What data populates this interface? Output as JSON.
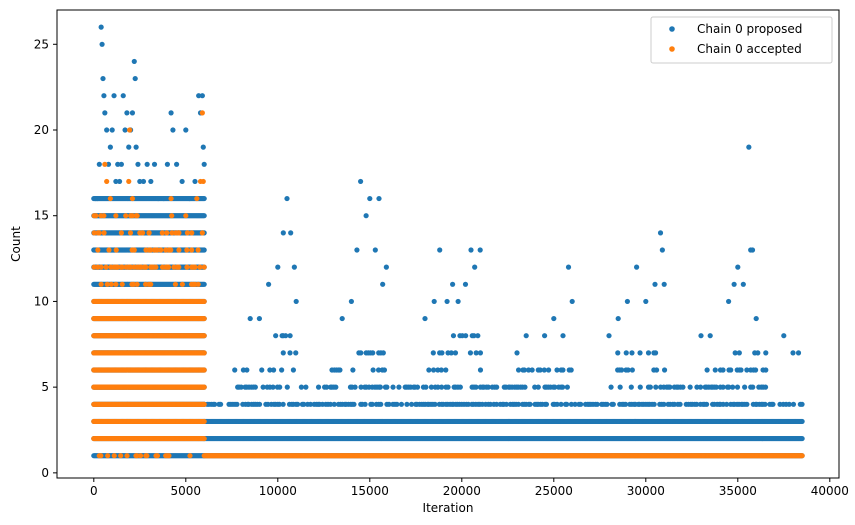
{
  "chart_data": {
    "type": "scatter",
    "title": "",
    "xlabel": "Iteration",
    "ylabel": "Count",
    "xlim": [
      -2000,
      40500
    ],
    "ylim": [
      -0.3,
      27
    ],
    "xticks": [
      0,
      5000,
      10000,
      15000,
      20000,
      25000,
      30000,
      35000,
      40000
    ],
    "yticks": [
      0,
      5,
      10,
      15,
      20,
      25
    ],
    "grid": false,
    "legend_position": "top-right",
    "colors": {
      "proposed": "#1f77b4",
      "accepted": "#ff7f0e"
    },
    "series": [
      {
        "name": "Chain 0 proposed",
        "color": "#1f77b4",
        "bands": [
          {
            "x_start": 0,
            "x_end": 6000,
            "y_min": 1,
            "y_max": 16
          },
          {
            "x_start": 6000,
            "x_end": 38500,
            "y_min": 1,
            "y_max": 3
          }
        ],
        "envelope": [
          [
            6000,
            4
          ],
          [
            7500,
            4
          ],
          [
            9500,
            6
          ],
          [
            10500,
            8
          ],
          [
            11000,
            5
          ],
          [
            12500,
            5
          ],
          [
            14000,
            6
          ],
          [
            15000,
            7
          ],
          [
            16000,
            5
          ],
          [
            18000,
            5
          ],
          [
            19500,
            7
          ],
          [
            20500,
            8
          ],
          [
            21000,
            5
          ],
          [
            23000,
            4
          ],
          [
            25000,
            6
          ],
          [
            26000,
            4
          ],
          [
            28000,
            4
          ],
          [
            30000,
            7
          ],
          [
            31000,
            5
          ],
          [
            33000,
            5
          ],
          [
            34500,
            6
          ],
          [
            35500,
            7
          ],
          [
            36500,
            4
          ],
          [
            38500,
            3
          ]
        ],
        "points": [
          [
            100,
            16
          ],
          [
            200,
            16
          ],
          [
            300,
            18
          ],
          [
            400,
            26
          ],
          [
            450,
            25
          ],
          [
            500,
            23
          ],
          [
            550,
            22
          ],
          [
            600,
            21
          ],
          [
            700,
            20
          ],
          [
            800,
            18
          ],
          [
            900,
            19
          ],
          [
            1000,
            20
          ],
          [
            1100,
            22
          ],
          [
            1200,
            17
          ],
          [
            1300,
            18
          ],
          [
            1400,
            17
          ],
          [
            1500,
            18
          ],
          [
            1600,
            22
          ],
          [
            1700,
            20
          ],
          [
            1800,
            21
          ],
          [
            1900,
            19
          ],
          [
            2000,
            20
          ],
          [
            2100,
            21
          ],
          [
            2200,
            24
          ],
          [
            2250,
            23
          ],
          [
            2300,
            19
          ],
          [
            2400,
            18
          ],
          [
            2500,
            17
          ],
          [
            2700,
            17
          ],
          [
            2900,
            18
          ],
          [
            3100,
            17
          ],
          [
            3300,
            18
          ],
          [
            3500,
            16
          ],
          [
            3800,
            16
          ],
          [
            4000,
            18
          ],
          [
            4200,
            21
          ],
          [
            4300,
            20
          ],
          [
            4500,
            18
          ],
          [
            4800,
            17
          ],
          [
            5000,
            20
          ],
          [
            5200,
            16
          ],
          [
            5500,
            17
          ],
          [
            5700,
            22
          ],
          [
            5800,
            21
          ],
          [
            5900,
            22
          ],
          [
            5950,
            19
          ],
          [
            6000,
            18
          ],
          [
            8500,
            9
          ],
          [
            9000,
            9
          ],
          [
            9500,
            11
          ],
          [
            10000,
            12
          ],
          [
            10300,
            14
          ],
          [
            10500,
            16
          ],
          [
            10700,
            14
          ],
          [
            10900,
            12
          ],
          [
            11000,
            10
          ],
          [
            13500,
            9
          ],
          [
            14000,
            10
          ],
          [
            14300,
            13
          ],
          [
            14500,
            17
          ],
          [
            14800,
            15
          ],
          [
            15000,
            16
          ],
          [
            15300,
            13
          ],
          [
            15500,
            16
          ],
          [
            15700,
            11
          ],
          [
            15900,
            12
          ],
          [
            18000,
            9
          ],
          [
            18500,
            10
          ],
          [
            18800,
            13
          ],
          [
            19200,
            10
          ],
          [
            19500,
            11
          ],
          [
            19800,
            10
          ],
          [
            20200,
            11
          ],
          [
            20500,
            13
          ],
          [
            20700,
            12
          ],
          [
            21000,
            13
          ],
          [
            23000,
            7
          ],
          [
            23500,
            8
          ],
          [
            24500,
            8
          ],
          [
            25000,
            9
          ],
          [
            25500,
            8
          ],
          [
            25800,
            12
          ],
          [
            26000,
            10
          ],
          [
            28000,
            8
          ],
          [
            28500,
            9
          ],
          [
            29000,
            10
          ],
          [
            29500,
            12
          ],
          [
            30000,
            10
          ],
          [
            30500,
            11
          ],
          [
            30800,
            14
          ],
          [
            30900,
            13
          ],
          [
            31000,
            11
          ],
          [
            33000,
            8
          ],
          [
            33500,
            8
          ],
          [
            34500,
            10
          ],
          [
            34800,
            11
          ],
          [
            35000,
            12
          ],
          [
            35300,
            11
          ],
          [
            35600,
            19
          ],
          [
            35700,
            13
          ],
          [
            35800,
            13
          ],
          [
            36000,
            9
          ],
          [
            37500,
            8
          ],
          [
            38000,
            7
          ],
          [
            38300,
            7
          ]
        ]
      },
      {
        "name": "Chain 0 accepted",
        "color": "#ff7f0e",
        "bands": [
          {
            "x_start": 0,
            "x_end": 6000,
            "y_min": 2,
            "y_max": 10
          },
          {
            "x_start": 6000,
            "x_end": 38500,
            "y_min": 1,
            "y_max": 1
          }
        ],
        "sparse": [
          [
            0,
            6000,
            1
          ],
          [
            0,
            6000,
            11
          ],
          [
            0,
            6000,
            12
          ],
          [
            0,
            6000,
            13
          ],
          [
            0,
            6000,
            14
          ],
          [
            0,
            6000,
            15
          ]
        ],
        "points": [
          [
            600,
            18
          ],
          [
            700,
            17
          ],
          [
            900,
            16
          ],
          [
            1200,
            15
          ],
          [
            1500,
            14
          ],
          [
            1900,
            17
          ],
          [
            1950,
            20
          ],
          [
            2100,
            16
          ],
          [
            2300,
            15
          ],
          [
            2500,
            14
          ],
          [
            3000,
            14
          ],
          [
            3300,
            13
          ],
          [
            4200,
            16
          ],
          [
            4600,
            14
          ],
          [
            5000,
            15
          ],
          [
            5600,
            16
          ],
          [
            5800,
            17
          ],
          [
            5900,
            21
          ],
          [
            5950,
            17
          ],
          [
            6000,
            12
          ]
        ]
      }
    ]
  }
}
